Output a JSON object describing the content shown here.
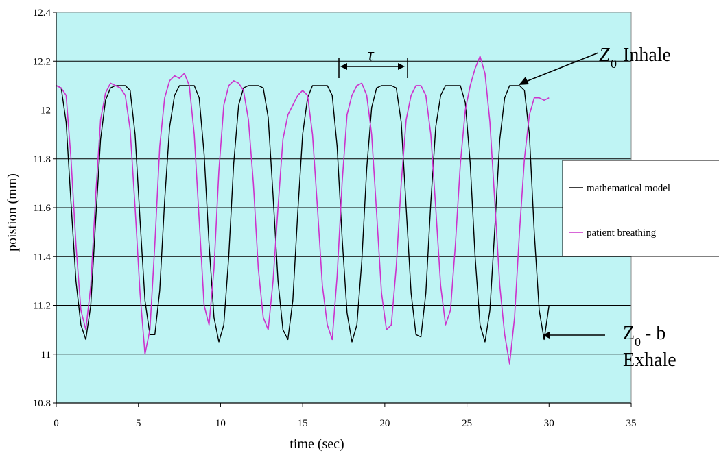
{
  "chart_data": {
    "type": "line",
    "xlabel": "time (sec)",
    "ylabel": "poistion (mm)",
    "xlim": [
      0,
      35
    ],
    "ylim": [
      10.8,
      12.4
    ],
    "xticks": [
      0,
      5,
      10,
      15,
      20,
      25,
      30,
      35
    ],
    "yticks": [
      10.8,
      11,
      11.2,
      11.4,
      11.6,
      11.8,
      12,
      12.2,
      12.4
    ],
    "ytick_labels": [
      "10.8",
      "11",
      "11.2",
      "11.4",
      "11.6",
      "11.8",
      "12",
      "12.2",
      "12.4"
    ],
    "grid": "horizontal",
    "plot_background": "#bff4f4",
    "legend_placement": "right",
    "series": [
      {
        "name": "mathematical model",
        "color": "#000000",
        "x": [
          0,
          0.3,
          0.6,
          0.9,
          1.2,
          1.5,
          1.8,
          2.1,
          2.4,
          2.7,
          3.0,
          3.3,
          3.6,
          3.9,
          4.2,
          4.5,
          4.8,
          5.1,
          5.4,
          5.7,
          6.0,
          6.3,
          6.6,
          6.9,
          7.2,
          7.5,
          7.8,
          8.1,
          8.4,
          8.7,
          9.0,
          9.3,
          9.6,
          9.9,
          10.2,
          10.5,
          10.8,
          11.1,
          11.4,
          11.7,
          12.0,
          12.3,
          12.6,
          12.9,
          13.2,
          13.5,
          13.8,
          14.1,
          14.4,
          14.7,
          15.0,
          15.3,
          15.6,
          15.9,
          16.2,
          16.5,
          16.8,
          17.1,
          17.4,
          17.7,
          18.0,
          18.3,
          18.6,
          18.9,
          19.2,
          19.5,
          19.8,
          20.1,
          20.4,
          20.7,
          21.0,
          21.3,
          21.6,
          21.9,
          22.2,
          22.5,
          22.8,
          23.1,
          23.4,
          23.7,
          24.0,
          24.3,
          24.6,
          24.9,
          25.2,
          25.5,
          25.8,
          26.1,
          26.4,
          26.7,
          27.0,
          27.3,
          27.6,
          27.9,
          28.2,
          28.5,
          28.8,
          29.1,
          29.4,
          29.7,
          30.0
        ],
        "y": [
          12.1,
          12.09,
          11.95,
          11.62,
          11.3,
          11.12,
          11.06,
          11.2,
          11.55,
          11.88,
          12.04,
          12.09,
          12.1,
          12.1,
          12.1,
          12.08,
          11.9,
          11.55,
          11.22,
          11.08,
          11.08,
          11.26,
          11.63,
          11.93,
          12.06,
          12.1,
          12.1,
          12.1,
          12.1,
          12.05,
          11.82,
          11.45,
          11.15,
          11.05,
          11.12,
          11.4,
          11.78,
          12.02,
          12.09,
          12.1,
          12.1,
          12.1,
          12.09,
          11.97,
          11.65,
          11.3,
          11.1,
          11.06,
          11.22,
          11.58,
          11.9,
          12.05,
          12.1,
          12.1,
          12.1,
          12.1,
          12.06,
          11.85,
          11.48,
          11.17,
          11.05,
          11.12,
          11.38,
          11.76,
          12.01,
          12.09,
          12.1,
          12.1,
          12.1,
          12.09,
          11.95,
          11.6,
          11.25,
          11.08,
          11.07,
          11.25,
          11.62,
          11.93,
          12.06,
          12.1,
          12.1,
          12.1,
          12.1,
          12.03,
          11.78,
          11.4,
          11.12,
          11.05,
          11.18,
          11.52,
          11.88,
          12.05,
          12.1,
          12.1,
          12.1,
          12.08,
          11.9,
          11.5,
          11.18,
          11.06,
          11.2
        ]
      },
      {
        "name": "patient breathing",
        "color": "#cc33cc",
        "x": [
          0,
          0.3,
          0.6,
          0.9,
          1.2,
          1.5,
          1.8,
          2.1,
          2.4,
          2.7,
          3.0,
          3.3,
          3.6,
          3.9,
          4.2,
          4.5,
          4.8,
          5.1,
          5.4,
          5.7,
          6.0,
          6.3,
          6.6,
          6.9,
          7.2,
          7.5,
          7.8,
          8.1,
          8.4,
          8.7,
          9.0,
          9.3,
          9.6,
          9.9,
          10.2,
          10.5,
          10.8,
          11.1,
          11.4,
          11.7,
          12.0,
          12.3,
          12.6,
          12.9,
          13.2,
          13.5,
          13.8,
          14.1,
          14.4,
          14.7,
          15.0,
          15.3,
          15.6,
          15.9,
          16.2,
          16.5,
          16.8,
          17.1,
          17.4,
          17.7,
          18.0,
          18.3,
          18.6,
          18.9,
          19.2,
          19.5,
          19.8,
          20.1,
          20.4,
          20.7,
          21.0,
          21.3,
          21.6,
          21.9,
          22.2,
          22.5,
          22.8,
          23.1,
          23.4,
          23.7,
          24.0,
          24.3,
          24.6,
          24.9,
          25.2,
          25.5,
          25.8,
          26.1,
          26.4,
          26.7,
          27.0,
          27.3,
          27.6,
          27.9,
          28.2,
          28.5,
          28.8,
          29.1,
          29.4,
          29.7,
          30.0
        ],
        "y": [
          12.1,
          12.09,
          12.06,
          11.8,
          11.45,
          11.18,
          11.1,
          11.28,
          11.65,
          11.96,
          12.07,
          12.11,
          12.1,
          12.09,
          12.06,
          11.92,
          11.6,
          11.25,
          11.0,
          11.1,
          11.45,
          11.85,
          12.05,
          12.12,
          12.14,
          12.13,
          12.15,
          12.1,
          11.9,
          11.55,
          11.2,
          11.12,
          11.35,
          11.75,
          12.02,
          12.1,
          12.12,
          12.11,
          12.08,
          11.96,
          11.7,
          11.35,
          11.15,
          11.1,
          11.3,
          11.6,
          11.88,
          11.98,
          12.02,
          12.06,
          12.08,
          12.06,
          11.9,
          11.6,
          11.28,
          11.12,
          11.06,
          11.32,
          11.7,
          11.98,
          12.06,
          12.1,
          12.11,
          12.06,
          11.9,
          11.58,
          11.25,
          11.1,
          11.12,
          11.36,
          11.7,
          11.96,
          12.06,
          12.1,
          12.1,
          12.06,
          11.9,
          11.6,
          11.28,
          11.12,
          11.18,
          11.45,
          11.78,
          12.0,
          12.1,
          12.17,
          12.22,
          12.15,
          11.95,
          11.62,
          11.28,
          11.08,
          10.96,
          11.15,
          11.5,
          11.8,
          11.98,
          12.05,
          12.05,
          12.04,
          12.05
        ]
      }
    ],
    "annotations": {
      "tau": "τ",
      "inhale_z": "Z",
      "inhale_sub": "0",
      "inhale_word": "Inhale",
      "exhale_z": "Z",
      "exhale_sub": "0",
      "exhale_rest": "- b",
      "exhale_word": "Exhale"
    }
  }
}
